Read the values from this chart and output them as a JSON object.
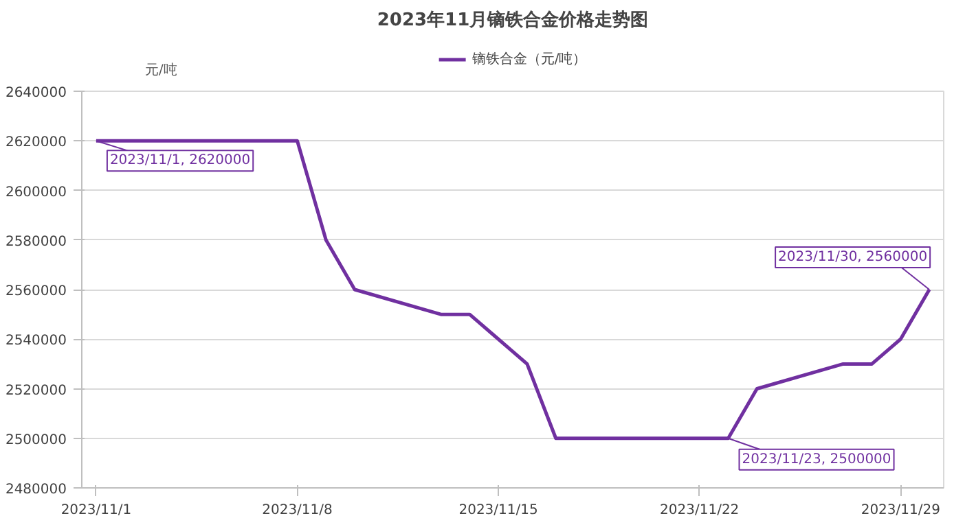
{
  "chart_data": {
    "type": "line",
    "title": "2023年11月镝铁合金价格走势图",
    "ylabel": "元/吨",
    "x": [
      "2023-11-01",
      "2023-11-02",
      "2023-11-03",
      "2023-11-06",
      "2023-11-07",
      "2023-11-08",
      "2023-11-09",
      "2023-11-10",
      "2023-11-13",
      "2023-11-14",
      "2023-11-15",
      "2023-11-16",
      "2023-11-17",
      "2023-11-20",
      "2023-11-21",
      "2023-11-22",
      "2023-11-23",
      "2023-11-24",
      "2023-11-27",
      "2023-11-28",
      "2023-11-29",
      "2023-11-30"
    ],
    "series": [
      {
        "name": "镝铁合金（元/吨）",
        "color": "#7030a0",
        "values": [
          2620000,
          2620000,
          2620000,
          2620000,
          2620000,
          2620000,
          2580000,
          2560000,
          2550000,
          2550000,
          2540000,
          2530000,
          2500000,
          2500000,
          2500000,
          2500000,
          2500000,
          2520000,
          2530000,
          2530000,
          2540000,
          2560000
        ]
      }
    ],
    "xlim": [
      "2023-10-31T12:00",
      "2023-11-30T12:00"
    ],
    "xticks": [
      {
        "value": "2023-11-01",
        "label": "2023/11/1"
      },
      {
        "value": "2023-11-08",
        "label": "2023/11/8"
      },
      {
        "value": "2023-11-15",
        "label": "2023/11/15"
      },
      {
        "value": "2023-11-22",
        "label": "2023/11/22"
      },
      {
        "value": "2023-11-29",
        "label": "2023/11/29"
      }
    ],
    "ylim": [
      2480000,
      2640000
    ],
    "yticks": [
      2480000,
      2500000,
      2520000,
      2540000,
      2560000,
      2580000,
      2600000,
      2620000,
      2640000
    ],
    "grid": "y",
    "legend": "top",
    "marker": "none",
    "line_style": "solid",
    "annotations": [
      {
        "text": "2023/11/1, 2620000",
        "x": "2023-11-01",
        "y": 2620000
      },
      {
        "text": "2023/11/23, 2500000",
        "x": "2023-11-23",
        "y": 2500000
      },
      {
        "text": "2023/11/30, 2560000",
        "x": "2023-11-30",
        "y": 2560000
      }
    ]
  }
}
